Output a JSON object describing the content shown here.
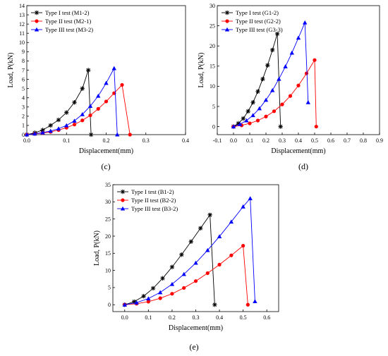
{
  "chart_data": [
    {
      "type": "line",
      "panel_label": "(c)",
      "xlabel": "Displacement(mm)",
      "ylabel": "Load, P(kN)",
      "xlim": [
        0.0,
        0.4
      ],
      "ylim": [
        0,
        14
      ],
      "xticks": [
        "0.0",
        "0.1",
        "0.2",
        "0.3",
        "0.4"
      ],
      "yticks": [
        "0",
        "1",
        "2",
        "3",
        "4",
        "5",
        "6",
        "7",
        "8",
        "9",
        "10",
        "11",
        "12",
        "13",
        "14"
      ],
      "grid": false,
      "legend_position": "top-left",
      "series": [
        {
          "name": "Type I test (M1-2)",
          "color": "#000000",
          "marker": "star",
          "x": [
            0,
            0.02,
            0.04,
            0.06,
            0.08,
            0.1,
            0.12,
            0.14,
            0.155
          ],
          "y": [
            0,
            0.2,
            0.5,
            1.0,
            1.6,
            2.4,
            3.5,
            5.0,
            7.0
          ],
          "drop_to": [
            0.162,
            0
          ]
        },
        {
          "name": "Type II test (M2-1)",
          "color": "#ff0000",
          "marker": "circle",
          "x": [
            0,
            0.02,
            0.04,
            0.06,
            0.08,
            0.1,
            0.12,
            0.14,
            0.16,
            0.18,
            0.2,
            0.22,
            0.24
          ],
          "y": [
            0,
            0.08,
            0.18,
            0.3,
            0.5,
            0.75,
            1.1,
            1.55,
            2.1,
            2.8,
            3.6,
            4.5,
            5.4
          ],
          "drop_to": [
            0.26,
            0
          ]
        },
        {
          "name": "Type III test (M3-2)",
          "color": "#0000ff",
          "marker": "triangle",
          "x": [
            0,
            0.02,
            0.04,
            0.06,
            0.08,
            0.1,
            0.12,
            0.14,
            0.16,
            0.18,
            0.2,
            0.22
          ],
          "y": [
            0,
            0.1,
            0.22,
            0.4,
            0.65,
            1.0,
            1.5,
            2.2,
            3.1,
            4.2,
            5.6,
            7.2
          ],
          "drop_to": [
            0.228,
            0
          ]
        }
      ]
    },
    {
      "type": "line",
      "panel_label": "(d)",
      "xlabel": "Displacement(mm)",
      "ylabel": "Load, P(kN)",
      "xlim": [
        -0.1,
        0.9
      ],
      "ylim": [
        -2,
        30
      ],
      "xticks": [
        "-0.1",
        "0.0",
        "0.1",
        "0.2",
        "0.3",
        "0.4",
        "0.5",
        "0.6",
        "0.7",
        "0.8",
        "0.9"
      ],
      "yticks": [
        "0",
        "5",
        "10",
        "15",
        "20",
        "25",
        "30"
      ],
      "grid": false,
      "legend_position": "top-left",
      "series": [
        {
          "name": "Type I test (G1-2)",
          "color": "#000000",
          "marker": "star",
          "x": [
            0,
            0.03,
            0.06,
            0.09,
            0.12,
            0.15,
            0.18,
            0.21,
            0.24,
            0.27
          ],
          "y": [
            0,
            0.8,
            2.0,
            3.8,
            6.0,
            8.7,
            11.8,
            15.2,
            19.0,
            23.0
          ],
          "drop_to": [
            0.29,
            0
          ]
        },
        {
          "name": "Type II test (G2-2)",
          "color": "#ff0000",
          "marker": "circle",
          "x": [
            0,
            0.05,
            0.1,
            0.15,
            0.2,
            0.25,
            0.3,
            0.35,
            0.4,
            0.45,
            0.5
          ],
          "y": [
            0,
            0.3,
            0.8,
            1.5,
            2.5,
            3.8,
            5.5,
            7.6,
            10.2,
            13.2,
            16.5
          ],
          "drop_to": [
            0.51,
            0
          ]
        },
        {
          "name": "Type III test (G3-3)",
          "color": "#0000ff",
          "marker": "triangle",
          "x": [
            0,
            0.04,
            0.08,
            0.12,
            0.16,
            0.2,
            0.24,
            0.28,
            0.32,
            0.36,
            0.4,
            0.44
          ],
          "y": [
            0,
            0.6,
            1.5,
            2.8,
            4.5,
            6.6,
            9.0,
            11.8,
            14.9,
            18.3,
            22.0,
            25.8
          ],
          "drop_to": [
            0.46,
            6
          ]
        }
      ]
    },
    {
      "type": "line",
      "panel_label": "(e)",
      "xlabel": "Displacement(mm)",
      "ylabel": "Load, P(kN)",
      "xlim": [
        -0.05,
        0.65
      ],
      "ylim": [
        -2,
        35
      ],
      "xticks": [
        "0.0",
        "0.1",
        "0.2",
        "0.3",
        "0.4",
        "0.5",
        "0.6"
      ],
      "yticks": [
        "0",
        "5",
        "10",
        "15",
        "20",
        "25",
        "30",
        "35"
      ],
      "grid": false,
      "legend_position": "top-left",
      "series": [
        {
          "name": "Type I test (B1-2)",
          "color": "#000000",
          "marker": "star",
          "x": [
            0,
            0.04,
            0.08,
            0.12,
            0.16,
            0.2,
            0.24,
            0.28,
            0.32,
            0.36
          ],
          "y": [
            0,
            0.9,
            2.5,
            4.8,
            7.7,
            11.0,
            14.6,
            18.4,
            22.3,
            26.2
          ],
          "drop_to": [
            0.38,
            0
          ]
        },
        {
          "name": "Type II test (B2-2)",
          "color": "#ff0000",
          "marker": "circle",
          "x": [
            0,
            0.05,
            0.1,
            0.15,
            0.2,
            0.25,
            0.3,
            0.35,
            0.4,
            0.45,
            0.5
          ],
          "y": [
            0,
            0.3,
            0.9,
            1.9,
            3.2,
            4.9,
            6.9,
            9.2,
            11.7,
            14.4,
            17.2
          ],
          "drop_to": [
            0.52,
            0
          ]
        },
        {
          "name": "Type III test (B3-2)",
          "color": "#0000ff",
          "marker": "triangle",
          "x": [
            0,
            0.05,
            0.1,
            0.15,
            0.2,
            0.25,
            0.3,
            0.35,
            0.4,
            0.45,
            0.5,
            0.53
          ],
          "y": [
            0,
            0.6,
            1.8,
            3.6,
            6.0,
            8.9,
            12.2,
            15.9,
            19.9,
            24.2,
            28.6,
            31.0
          ],
          "drop_to": [
            0.55,
            1
          ]
        }
      ]
    }
  ]
}
